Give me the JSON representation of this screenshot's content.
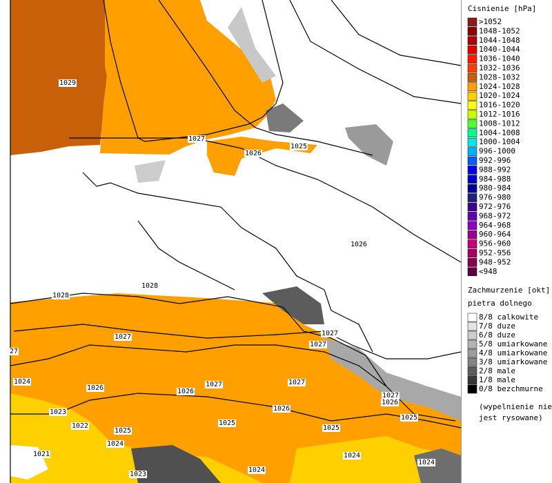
{
  "legend_pressure": {
    "title": "Cisnienie [hPa]",
    "items": [
      {
        "label": ">1052",
        "color": "#8b1a1a"
      },
      {
        "label": "1048-1052",
        "color": "#8b0000"
      },
      {
        "label": "1044-1048",
        "color": "#b00000"
      },
      {
        "label": "1040-1044",
        "color": "#e00000"
      },
      {
        "label": "1036-1040",
        "color": "#ff1a00"
      },
      {
        "label": "1032-1036",
        "color": "#ff4000"
      },
      {
        "label": "1028-1032",
        "color": "#c8600a"
      },
      {
        "label": "1024-1028",
        "color": "#ffa000"
      },
      {
        "label": "1020-1024",
        "color": "#ffd000"
      },
      {
        "label": "1016-1020",
        "color": "#ffff00"
      },
      {
        "label": "1012-1016",
        "color": "#c8ff00"
      },
      {
        "label": "1008-1012",
        "color": "#50ff30"
      },
      {
        "label": "1004-1008",
        "color": "#00ff90"
      },
      {
        "label": "1000-1004",
        "color": "#00e8e0"
      },
      {
        "label": "996-1000",
        "color": "#00b0ff"
      },
      {
        "label": "992-996",
        "color": "#0060ff"
      },
      {
        "label": "988-992",
        "color": "#0000ff"
      },
      {
        "label": "984-988",
        "color": "#0000c8"
      },
      {
        "label": "980-984",
        "color": "#000098"
      },
      {
        "label": "976-980",
        "color": "#202080"
      },
      {
        "label": "972-976",
        "color": "#400090"
      },
      {
        "label": "968-972",
        "color": "#6000b0"
      },
      {
        "label": "964-968",
        "color": "#9000c0"
      },
      {
        "label": "960-964",
        "color": "#a00090"
      },
      {
        "label": "956-960",
        "color": "#c80078"
      },
      {
        "label": "952-956",
        "color": "#a80060"
      },
      {
        "label": "948-952",
        "color": "#880050"
      },
      {
        "label": "<948",
        "color": "#600040"
      }
    ]
  },
  "legend_cloud": {
    "title": [
      "Zachmurzenie [okt]",
      "pietra dolnego"
    ],
    "items": [
      {
        "label": "8/8 calkowite",
        "color": "#ffffff"
      },
      {
        "label": "7/8 duze",
        "color": "#e4e4e4"
      },
      {
        "label": "6/8 duze",
        "color": "#cccccc"
      },
      {
        "label": "5/8 umiarkowane",
        "color": "#b4b4b4"
      },
      {
        "label": "4/8 umiarkowane",
        "color": "#9c9c9c"
      },
      {
        "label": "3/8 umiarkowane",
        "color": "#848484"
      },
      {
        "label": "2/8 male",
        "color": "#5c5c5c"
      },
      {
        "label": "1/8 male",
        "color": "#383838"
      },
      {
        "label": "0/8 bezchmurne",
        "color": "#000000"
      }
    ],
    "note": [
      "(wypelnienie nie",
      "jest rysowane)"
    ]
  },
  "isobar_labels": [
    "1029",
    "1027",
    "1026",
    "1025",
    "1026",
    "1028",
    "1028",
    "1027",
    "1027",
    "1027",
    "27",
    "1024",
    "1026",
    "1027",
    "1027",
    "1026",
    "1027",
    "1026",
    "1026",
    "1023",
    "1025",
    "1022",
    "1025",
    "1025",
    "1025",
    "1024",
    "1021",
    "1024",
    "1024",
    "1023",
    "1024"
  ]
}
